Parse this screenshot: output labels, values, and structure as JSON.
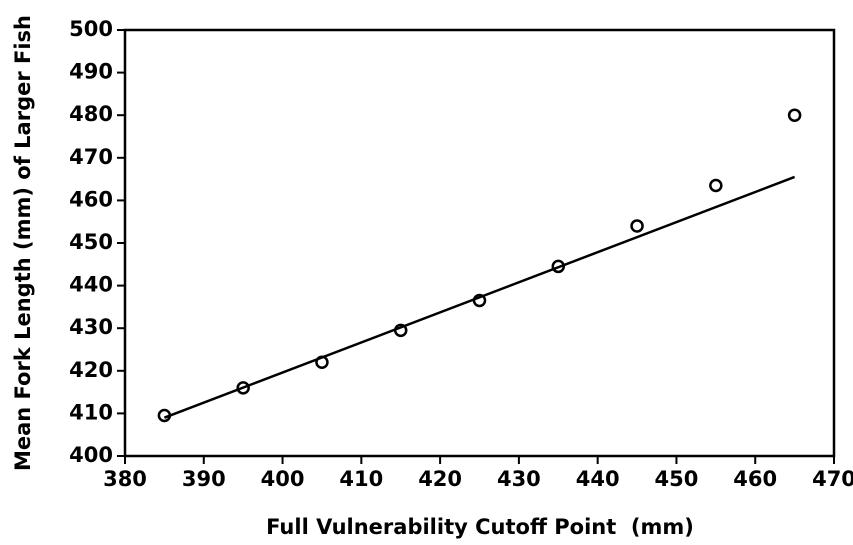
{
  "chart_data": {
    "type": "scatter",
    "x_label": "Full Vulnerability Cutoff Point  (mm)",
    "y_label": "Mean Fork Length (mm) of Larger Fish",
    "x": [
      385,
      395,
      405,
      415,
      425,
      435,
      445,
      455,
      465
    ],
    "values": [
      409.5,
      416,
      422,
      429.5,
      436.5,
      444.5,
      454,
      463.5,
      480
    ],
    "color": "#000000",
    "fit_line": {
      "x": [
        385,
        465
      ],
      "y": [
        409,
        465.5
      ]
    },
    "xlim": [
      380,
      470
    ],
    "xticks": [
      380,
      390,
      400,
      410,
      420,
      430,
      440,
      450,
      460,
      470
    ],
    "ylim": [
      400,
      500
    ],
    "yticks": [
      400,
      410,
      420,
      430,
      440,
      450,
      460,
      470,
      480,
      490,
      500
    ],
    "grid": false
  }
}
